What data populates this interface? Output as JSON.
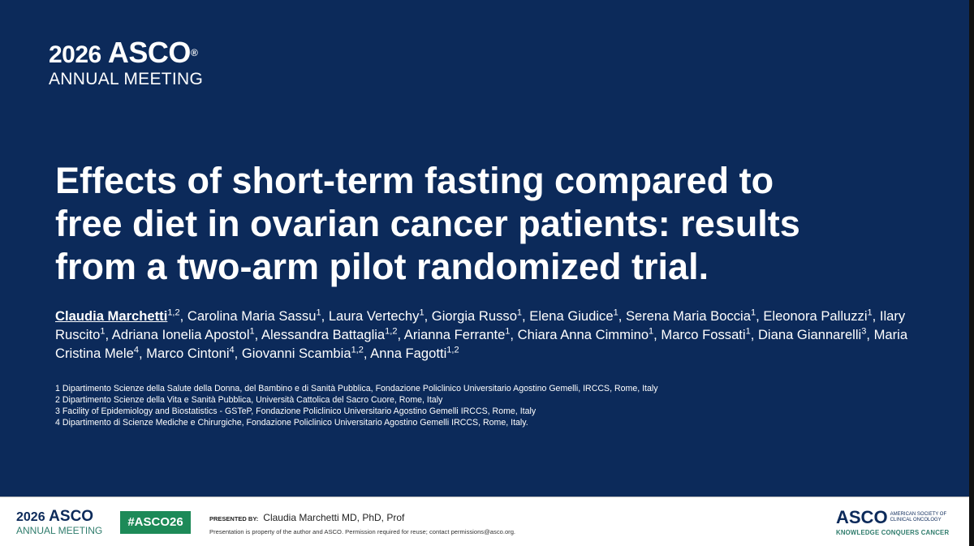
{
  "header": {
    "year": "2026",
    "brand": "ASCO",
    "reg": "®",
    "event": "ANNUAL MEETING"
  },
  "title_lines": [
    "Effects of short-term fasting compared to",
    "free diet in ovarian cancer patients: results",
    "from a two-arm pilot randomized trial."
  ],
  "authors": [
    {
      "name": "Claudia Marchetti",
      "sup": "1,2"
    },
    {
      "name": ", Carolina Maria Sassu",
      "sup": "1"
    },
    {
      "name": ", Laura Vertechy",
      "sup": "1"
    },
    {
      "name": ", Giorgia Russo",
      "sup": "1"
    },
    {
      "name": ", Elena Giudice",
      "sup": "1"
    },
    {
      "name": ", Serena Maria Boccia",
      "sup": "1"
    },
    {
      "name": ", Eleonora Palluzzi",
      "sup": "1"
    },
    {
      "name": ", Ilary Ruscito",
      "sup": "1"
    },
    {
      "name": ", Adriana Ionelia Apostol",
      "sup": "1"
    },
    {
      "name": ", Alessandra Battaglia",
      "sup": "1,2"
    },
    {
      "name": ", Arianna Ferrante",
      "sup": "1"
    },
    {
      "name": ", Chiara Anna Cimmino",
      "sup": "1"
    },
    {
      "name": ", Marco Fossati",
      "sup": "1"
    },
    {
      "name": ", Diana Giannarelli",
      "sup": "3"
    },
    {
      "name": ", Maria Cristina Mele",
      "sup": "4"
    },
    {
      "name": ", Marco Cintoni",
      "sup": "4"
    },
    {
      "name": ", Giovanni Scambia",
      "sup": "1,2"
    },
    {
      "name": ", Anna Fagotti",
      "sup": "1,2"
    }
  ],
  "affiliations": [
    "1 Dipartimento Scienze della Salute della Donna, del Bambino e di Sanità Pubblica, Fondazione Policlinico Universitario Agostino Gemelli, IRCCS, Rome, Italy",
    "2 Dipartimento Scienze della Vita e Sanità Pubblica, Università Cattolica del Sacro Cuore, Rome, Italy",
    "3 Facility of Epidemiology and Biostatistics - GSTeP, Fondazione Policlinico Universitario Agostino Gemelli IRCCS, Rome, Italy",
    "4 Dipartimento di Scienze Mediche e Chirurgiche, Fondazione Policlinico Universitario Agostino Gemelli IRCCS, Rome, Italy."
  ],
  "footer": {
    "year": "2026",
    "brand": "ASCO",
    "event": "ANNUAL MEETING",
    "hashtag": "#ASCO26",
    "presented_by_label": "PRESENTED BY:",
    "presenter": "Claudia Marchetti MD, PhD, Prof",
    "notice": "Presentation is property of the author and ASCO. Permission required for reuse; contact permissions@asco.org.",
    "society_brand": "ASCO",
    "society_name_lines": [
      "AMERICAN SOCIETY OF",
      "CLINICAL ONCOLOGY"
    ],
    "tagline": "KNOWLEDGE CONQUERS CANCER"
  }
}
